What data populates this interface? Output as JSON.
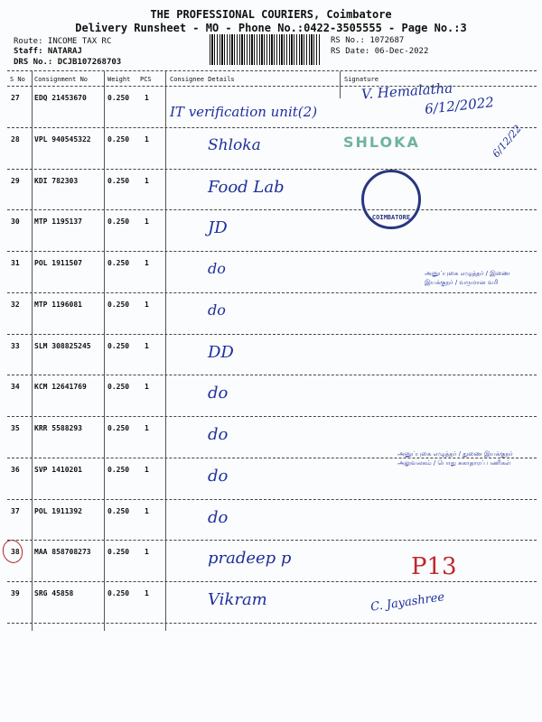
{
  "header": {
    "company": "THE PROFESSIONAL COURIERS, Coimbatore",
    "subtitle": "Delivery Runsheet - MO - Phone No.:0422-3505555 - Page No.:3",
    "route": "Route: INCOME TAX RC",
    "staff": "Staff: NATARAJ",
    "drs": "DRS No.: DCJB107268703",
    "rs_no": "RS No.: 1072687",
    "rs_date": "RS Date: 06-Dec-2022"
  },
  "columns": [
    "S No",
    "Consignment No",
    "Weight",
    "PCS",
    "Consignee Details",
    "Signature"
  ],
  "rows": [
    {
      "sno": "27",
      "cons": "EDQ 21453670",
      "weight": "0.250",
      "pcs": "1",
      "consignee": "IT verification unit(2)"
    },
    {
      "sno": "28",
      "cons": "VPL 940545322",
      "weight": "0.250",
      "pcs": "1",
      "consignee": "Shloka"
    },
    {
      "sno": "29",
      "cons": "KDI 782303",
      "weight": "0.250",
      "pcs": "1",
      "consignee": "Food Lab"
    },
    {
      "sno": "30",
      "cons": "MTP 1195137",
      "weight": "0.250",
      "pcs": "1",
      "consignee": "JD"
    },
    {
      "sno": "31",
      "cons": "POL 1911507",
      "weight": "0.250",
      "pcs": "1",
      "consignee": "do"
    },
    {
      "sno": "32",
      "cons": "MTP 1196081",
      "weight": "0.250",
      "pcs": "1",
      "consignee": "do"
    },
    {
      "sno": "33",
      "cons": "SLM 308825245",
      "weight": "0.250",
      "pcs": "1",
      "consignee": "DD"
    },
    {
      "sno": "34",
      "cons": "KCM 12641769",
      "weight": "0.250",
      "pcs": "1",
      "consignee": "do"
    },
    {
      "sno": "35",
      "cons": "KRR 5588293",
      "weight": "0.250",
      "pcs": "1",
      "consignee": "do"
    },
    {
      "sno": "36",
      "cons": "SVP 1410201",
      "weight": "0.250",
      "pcs": "1",
      "consignee": "do"
    },
    {
      "sno": "37",
      "cons": "POL 1911392",
      "weight": "0.250",
      "pcs": "1",
      "consignee": "do"
    },
    {
      "sno": "38",
      "cons": "MAA 858708273",
      "weight": "0.250",
      "pcs": "1",
      "consignee": "pradeep p"
    },
    {
      "sno": "39",
      "cons": "SRG 45858",
      "weight": "0.250",
      "pcs": "1",
      "consignee": "Vikram"
    }
  ],
  "signatures": {
    "sig27": "V. Hemalatha",
    "date27": "6/12/2022",
    "stamp28": "SHLOKA",
    "date28": "6/12/22",
    "stamp29": "COIMBATORE",
    "tamil1": "அனுப்புகை எழுத்தர் / இணை இயக்குநர் / வருமான வரி",
    "tamil2": "அனுப்புகை எழுத்தர் / துணை இயக்குநர் அலுவலகம் / பொது சுகாதாரப் பணிகள்",
    "sig38": "P13",
    "sig39": "C. Jayashree"
  }
}
